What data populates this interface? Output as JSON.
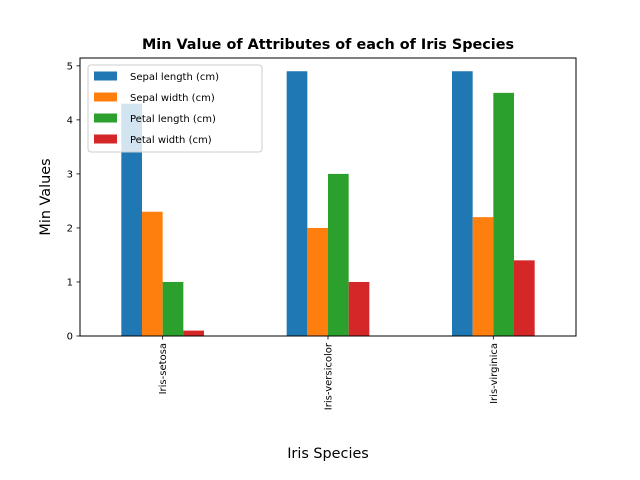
{
  "chart_data": {
    "type": "bar",
    "title": "Min Value of Attributes of each of Iris Species",
    "xlabel": "Iris Species",
    "ylabel": "Min Values",
    "categories": [
      "Iris-setosa",
      "Iris-versicolor",
      "Iris-virginica"
    ],
    "series": [
      {
        "name": "Sepal length (cm)",
        "color": "#1f77b4",
        "values": [
          4.3,
          4.9,
          4.9
        ]
      },
      {
        "name": "Sepal width (cm)",
        "color": "#ff7f0e",
        "values": [
          2.3,
          2.0,
          2.2
        ]
      },
      {
        "name": "Petal length (cm)",
        "color": "#2ca02c",
        "values": [
          1.0,
          3.0,
          4.5
        ]
      },
      {
        "name": "Petal width (cm)",
        "color": "#d62728",
        "values": [
          0.1,
          1.0,
          1.4
        ]
      }
    ],
    "ylim": [
      0,
      5.145
    ],
    "yticks": [
      0,
      1,
      2,
      3,
      4,
      5
    ],
    "legend_position": "top-left",
    "grid": false
  }
}
